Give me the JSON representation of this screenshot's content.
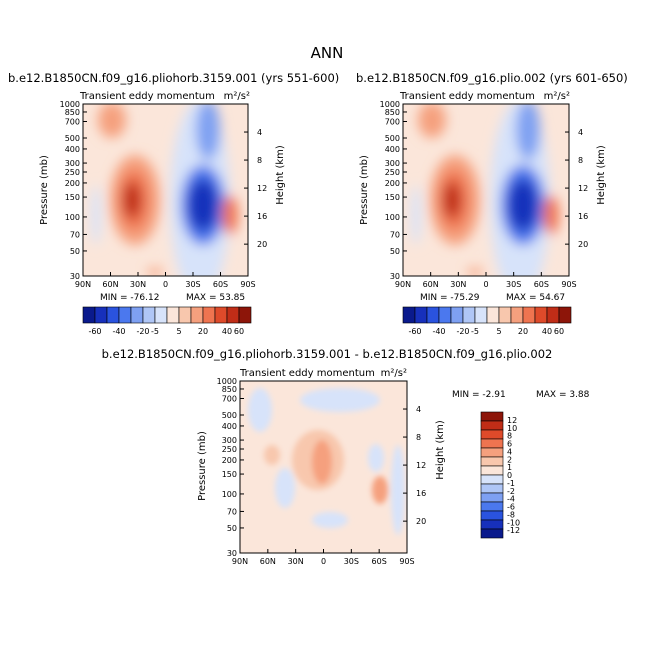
{
  "figure": {
    "title": "ANN"
  },
  "colors": {
    "panel1": [
      "#0a1a8c",
      "#1730bb",
      "#2a53df",
      "#4b78ee",
      "#7ea0f2",
      "#afc6f6",
      "#d7e3fa",
      "#fbe6da",
      "#f8c7ad",
      "#f5a07e",
      "#ef7450",
      "#de4a2a",
      "#c02d17",
      "#8d1509"
    ],
    "diff": [
      "#0a1a8c",
      "#1730bb",
      "#2a53df",
      "#4b78ee",
      "#7ea0f2",
      "#afc6f6",
      "#d7e3fa",
      "#fbe6da",
      "#f8c7ad",
      "#f5a07e",
      "#ef7450",
      "#de4a2a",
      "#c02d17",
      "#8d1509"
    ]
  },
  "chart_data": [
    {
      "type": "heatmap",
      "title": "b.e12.B1850CN.f09_g16.pliohorb.3159.001 (yrs 551-600)",
      "subtitle_left": "Transient eddy momentum",
      "units": "m²/s²",
      "xlabel": "",
      "ylabel": "Pressure (mb)",
      "ylabel_right": "Height (km)",
      "x_ticklabels": [
        "90N",
        "60N",
        "30N",
        "0",
        "30S",
        "60S",
        "90S"
      ],
      "y_ticklabels": [
        "30",
        "50",
        "70",
        "100",
        "150",
        "200",
        "250",
        "300",
        "400",
        "500",
        "700",
        "850",
        "1000"
      ],
      "y_right_ticklabels": [
        "20",
        "16",
        "12",
        "8",
        "4"
      ],
      "min_text": "MIN = -76.12",
      "max_text": "MAX = 53.85",
      "features": [
        {
          "lat": 28,
          "pressure": 220,
          "value": 53.85,
          "description": "NH positive max"
        },
        {
          "lat": -35,
          "pressure": 230,
          "value": -76.12,
          "description": "SH negative min"
        },
        {
          "lat": -58,
          "pressure": 260,
          "value": 20,
          "description": "SH high-latitude positive"
        }
      ]
    },
    {
      "type": "heatmap",
      "title": "b.e12.B1850CN.f09_g16.plio.002 (yrs 601-650)",
      "subtitle_left": "Transient eddy momentum",
      "units": "m²/s²",
      "xlabel": "",
      "ylabel": "Pressure (mb)",
      "ylabel_right": "Height (km)",
      "x_ticklabels": [
        "90N",
        "60N",
        "30N",
        "0",
        "30S",
        "60S",
        "90S"
      ],
      "y_ticklabels": [
        "30",
        "50",
        "70",
        "100",
        "150",
        "200",
        "250",
        "300",
        "400",
        "500",
        "700",
        "850",
        "1000"
      ],
      "y_right_ticklabels": [
        "20",
        "16",
        "12",
        "8",
        "4"
      ],
      "min_text": "MIN = -75.29",
      "max_text": "MAX = 54.67",
      "features": [
        {
          "lat": 28,
          "pressure": 220,
          "value": 54.67,
          "description": "NH positive max"
        },
        {
          "lat": -35,
          "pressure": 230,
          "value": -75.29,
          "description": "SH negative min"
        },
        {
          "lat": -58,
          "pressure": 260,
          "value": 20,
          "description": "SH high-latitude positive"
        }
      ]
    },
    {
      "type": "heatmap",
      "title": "b.e12.B1850CN.f09_g16.pliohorb.3159.001 - b.e12.B1850CN.f09_g16.plio.002",
      "subtitle_left": "Transient eddy momentum",
      "units": "m²/s²",
      "xlabel": "",
      "ylabel": "Pressure (mb)",
      "ylabel_right": "Height (km)",
      "x_ticklabels": [
        "90N",
        "60N",
        "30N",
        "0",
        "30S",
        "60S",
        "90S"
      ],
      "y_ticklabels": [
        "30",
        "50",
        "70",
        "100",
        "150",
        "200",
        "250",
        "300",
        "400",
        "500",
        "700",
        "850",
        "1000"
      ],
      "y_right_ticklabels": [
        "20",
        "16",
        "12",
        "8",
        "4"
      ],
      "min_text": "MIN =   -2.91",
      "max_text": "MAX =    3.88",
      "features": [
        {
          "lat": 5,
          "pressure": 150,
          "value": 3.88,
          "description": "tropical positive"
        },
        {
          "lat": -55,
          "pressure": 270,
          "value": 2.5,
          "description": "SH positive"
        },
        {
          "lat": 40,
          "pressure": 270,
          "value": -2.91,
          "description": "NH negative"
        }
      ]
    }
  ],
  "colorbars": [
    {
      "levels": [
        "-60",
        "-40",
        "-20",
        "-5",
        "5",
        "20",
        "40",
        "60"
      ],
      "orientation": "horizontal",
      "label_set": "a"
    },
    {
      "levels": [
        "-60",
        "-40",
        "-20",
        "-5",
        "5",
        "20",
        "40",
        "60"
      ],
      "orientation": "horizontal",
      "label_set": "b"
    },
    {
      "levels": [
        "12",
        "10",
        "8",
        "6",
        "4",
        "2",
        "1",
        "0",
        "-1",
        "-2",
        "-4",
        "-6",
        "-8",
        "-10",
        "-12"
      ],
      "orientation": "vertical"
    }
  ]
}
